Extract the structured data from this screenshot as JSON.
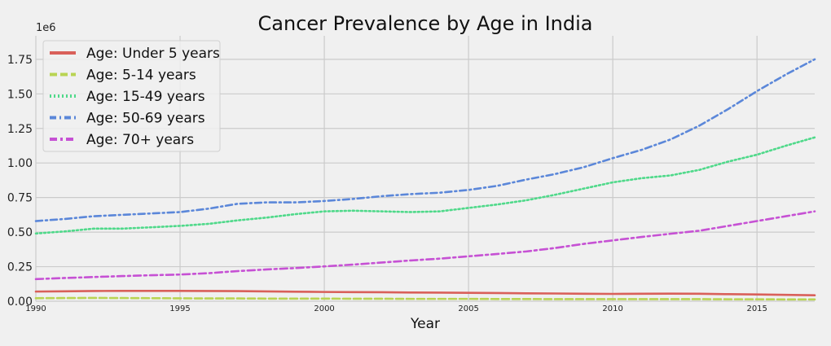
{
  "chart_data": {
    "type": "line",
    "title": "Cancer Prevalence by Age in India",
    "xlabel": "Year",
    "ylabel": "",
    "y_offset_text": "1e6",
    "xlim": [
      1990,
      2017
    ],
    "ylim": [
      0,
      1.92
    ],
    "x_ticks": [
      1990,
      1995,
      2000,
      2005,
      2010,
      2015
    ],
    "y_ticks": [
      0.0,
      0.25,
      0.5,
      0.75,
      1.0,
      1.25,
      1.5,
      1.75
    ],
    "y_tick_labels": [
      "0.00",
      "0.25",
      "0.50",
      "0.75",
      "1.00",
      "1.25",
      "1.50",
      "1.75"
    ],
    "grid": true,
    "legend_position": "top-left",
    "x": [
      1990,
      1991,
      1992,
      1993,
      1994,
      1995,
      1996,
      1997,
      1998,
      1999,
      2000,
      2001,
      2002,
      2003,
      2004,
      2005,
      2006,
      2007,
      2008,
      2009,
      2010,
      2011,
      2012,
      2013,
      2014,
      2015,
      2016,
      2017
    ],
    "series": [
      {
        "name": "Age: Under 5 years",
        "color": "#d9605a",
        "dash": "solid",
        "values": [
          0.07,
          0.072,
          0.074,
          0.075,
          0.075,
          0.075,
          0.074,
          0.073,
          0.071,
          0.069,
          0.067,
          0.066,
          0.065,
          0.063,
          0.062,
          0.061,
          0.059,
          0.057,
          0.056,
          0.054,
          0.053,
          0.054,
          0.055,
          0.054,
          0.051,
          0.049,
          0.046,
          0.043
        ]
      },
      {
        "name": "Age: 5-14 years",
        "color": "#b9d453",
        "dash": "dashed",
        "values": [
          0.022,
          0.023,
          0.024,
          0.023,
          0.022,
          0.021,
          0.02,
          0.02,
          0.019,
          0.019,
          0.019,
          0.018,
          0.018,
          0.017,
          0.017,
          0.017,
          0.016,
          0.016,
          0.015,
          0.015,
          0.015,
          0.015,
          0.015,
          0.015,
          0.014,
          0.014,
          0.013,
          0.013
        ]
      },
      {
        "name": "Age: 15-49 years",
        "color": "#4fd98a",
        "dash": "dotted",
        "values": [
          0.49,
          0.505,
          0.525,
          0.525,
          0.535,
          0.545,
          0.56,
          0.585,
          0.605,
          0.63,
          0.65,
          0.655,
          0.65,
          0.645,
          0.65,
          0.675,
          0.7,
          0.73,
          0.77,
          0.815,
          0.86,
          0.89,
          0.91,
          0.95,
          1.01,
          1.06,
          1.125,
          1.185
        ]
      },
      {
        "name": "Age: 50-69 years",
        "color": "#5b87d9",
        "dash": "dashdot-long",
        "values": [
          0.58,
          0.595,
          0.615,
          0.625,
          0.635,
          0.645,
          0.67,
          0.705,
          0.715,
          0.715,
          0.725,
          0.74,
          0.76,
          0.775,
          0.785,
          0.805,
          0.835,
          0.88,
          0.92,
          0.97,
          1.035,
          1.095,
          1.17,
          1.27,
          1.39,
          1.52,
          1.64,
          1.75
        ]
      },
      {
        "name": "Age: 70+ years",
        "color": "#c651d4",
        "dash": "dashdot",
        "values": [
          0.16,
          0.168,
          0.175,
          0.182,
          0.188,
          0.193,
          0.203,
          0.218,
          0.23,
          0.24,
          0.252,
          0.265,
          0.28,
          0.295,
          0.308,
          0.325,
          0.342,
          0.36,
          0.385,
          0.415,
          0.44,
          0.465,
          0.488,
          0.51,
          0.545,
          0.58,
          0.615,
          0.65
        ]
      }
    ]
  }
}
